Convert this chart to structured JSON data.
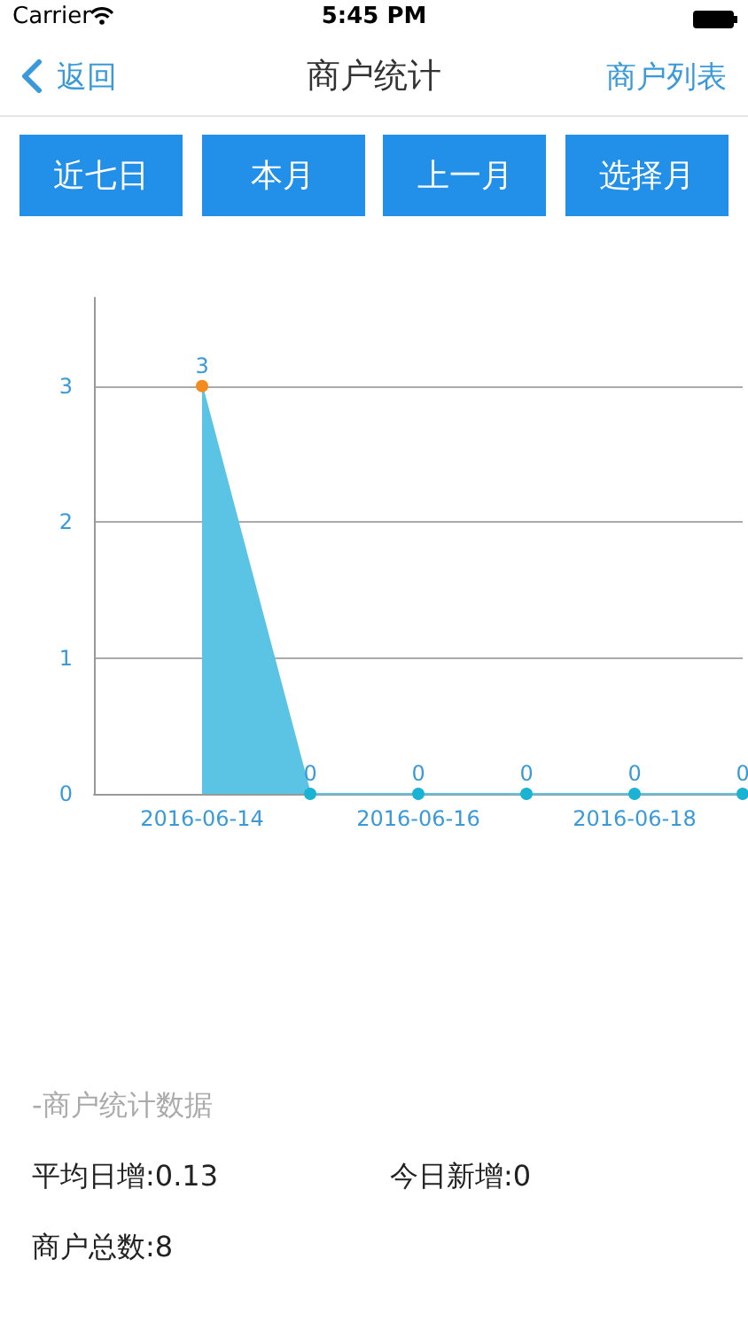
{
  "chart_data": {
    "type": "area",
    "title": "商户统计",
    "categories": [
      null,
      "2016-06-14",
      null,
      "2016-06-16",
      null,
      "2016-06-18",
      null
    ],
    "values": [
      null,
      3,
      0,
      0,
      0,
      0,
      0
    ],
    "color": "#5bc4e4",
    "colors": [
      "#1ab3d3",
      "#f58a1f",
      "#1ab3d3",
      "#1ab3d3",
      "#1ab3d3",
      "#1ab3d3",
      "#1ab3d3"
    ],
    "ylim": [
      0,
      3.65
    ],
    "yticks": [
      0,
      1,
      2,
      3
    ],
    "grid": "y",
    "marker": "circle",
    "data_labels": true,
    "annotations": [
      "Carrier",
      "5:45 PM",
      "返回",
      "商户列表",
      "近七日",
      "本月",
      "上一月",
      "选择月",
      "-商户统计数据",
      "平均日增:0.13",
      "今日新增:0",
      "商户总数:8"
    ]
  }
}
